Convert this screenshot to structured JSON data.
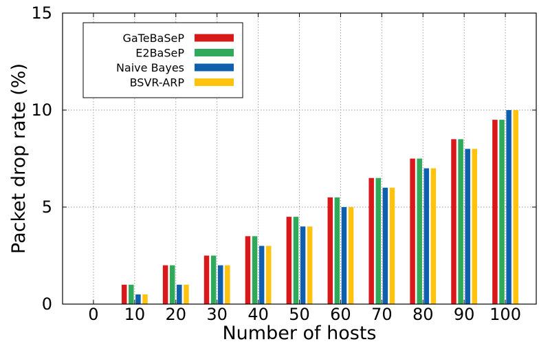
{
  "chart_data": {
    "type": "bar",
    "title": "",
    "xlabel": "Number of hosts",
    "ylabel": "Packet drop rate (%)",
    "categories": [
      "0",
      "10",
      "20",
      "30",
      "40",
      "50",
      "60",
      "70",
      "80",
      "90",
      "100"
    ],
    "ylim": [
      0,
      15
    ],
    "yticks": [
      "0",
      "5",
      "10",
      "15"
    ],
    "grid": true,
    "legend_position": "top-left",
    "series": [
      {
        "name": "GaTeBaSeP",
        "color": "#d7191c",
        "values": [
          0,
          1.0,
          2.0,
          2.5,
          3.5,
          4.5,
          5.5,
          6.5,
          7.5,
          8.5,
          9.5
        ]
      },
      {
        "name": "E2BaSeP",
        "color": "#2eaa5a",
        "values": [
          0,
          1.0,
          2.0,
          2.5,
          3.5,
          4.5,
          5.5,
          6.5,
          7.5,
          8.5,
          9.5
        ]
      },
      {
        "name": "Naive Bayes",
        "color": "#0f5fad",
        "values": [
          0,
          0.5,
          1.0,
          2.0,
          3.0,
          4.0,
          5.0,
          6.0,
          7.0,
          8.0,
          10.0
        ]
      },
      {
        "name": "BSVR-ARP",
        "color": "#ffc20e",
        "values": [
          0,
          0.5,
          1.0,
          2.0,
          3.0,
          4.0,
          5.0,
          6.0,
          7.0,
          8.0,
          10.0
        ]
      }
    ]
  }
}
